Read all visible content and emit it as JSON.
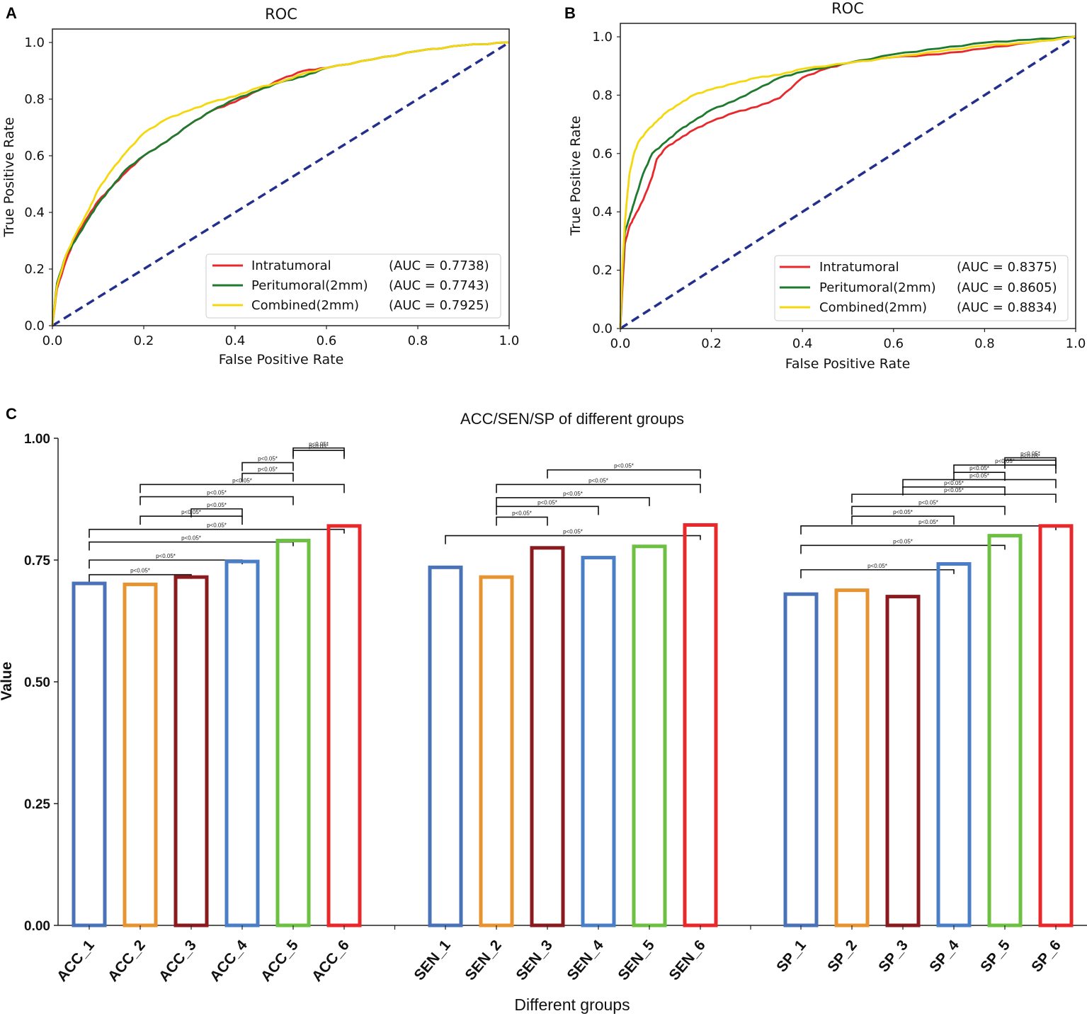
{
  "panels": {
    "a": "A",
    "b": "B",
    "c": "C"
  },
  "chart_data": [
    {
      "id": "A",
      "type": "line",
      "title": "ROC",
      "xlabel": "False Positive Rate",
      "ylabel": "True Positive Rate",
      "xlim": [
        0,
        1
      ],
      "ylim": [
        0,
        1
      ],
      "xticks": [
        "0.0",
        "0.2",
        "0.4",
        "0.6",
        "0.8",
        "1.0"
      ],
      "yticks": [
        "0.0",
        "0.2",
        "0.4",
        "0.6",
        "0.8",
        "1.0"
      ],
      "legend_position": "bottom-right",
      "series": [
        {
          "name": "Intratumoral",
          "auc": "(AUC = 0.7738)",
          "color": "#e8282b",
          "x": [
            0,
            0.01,
            0.03,
            0.05,
            0.08,
            0.1,
            0.13,
            0.16,
            0.2,
            0.25,
            0.3,
            0.35,
            0.4,
            0.45,
            0.5,
            0.55,
            0.6,
            0.7,
            0.8,
            0.9,
            1.0
          ],
          "y": [
            0,
            0.13,
            0.23,
            0.31,
            0.39,
            0.44,
            0.49,
            0.54,
            0.6,
            0.65,
            0.71,
            0.76,
            0.79,
            0.83,
            0.87,
            0.9,
            0.91,
            0.94,
            0.97,
            0.99,
            1.0
          ]
        },
        {
          "name": "Peritumoral(2mm)",
          "auc": "(AUC = 0.7743)",
          "color": "#1d7a2e",
          "x": [
            0,
            0.01,
            0.03,
            0.05,
            0.08,
            0.1,
            0.13,
            0.16,
            0.2,
            0.25,
            0.3,
            0.35,
            0.4,
            0.45,
            0.5,
            0.55,
            0.6,
            0.7,
            0.8,
            0.9,
            1.0
          ],
          "y": [
            0,
            0.15,
            0.25,
            0.3,
            0.38,
            0.43,
            0.49,
            0.55,
            0.6,
            0.65,
            0.71,
            0.76,
            0.8,
            0.83,
            0.86,
            0.88,
            0.91,
            0.94,
            0.97,
            0.99,
            1.0
          ]
        },
        {
          "name": "Combined(2mm)",
          "auc": "(AUC = 0.7925)",
          "color": "#f5d80c",
          "x": [
            0,
            0.01,
            0.03,
            0.05,
            0.08,
            0.1,
            0.13,
            0.16,
            0.2,
            0.25,
            0.3,
            0.35,
            0.4,
            0.45,
            0.5,
            0.55,
            0.6,
            0.7,
            0.8,
            0.9,
            1.0
          ],
          "y": [
            0,
            0.14,
            0.25,
            0.32,
            0.41,
            0.48,
            0.55,
            0.61,
            0.68,
            0.73,
            0.76,
            0.79,
            0.81,
            0.84,
            0.86,
            0.89,
            0.91,
            0.94,
            0.97,
            0.99,
            1.0
          ]
        }
      ],
      "diagonal_color": "#232f8c"
    },
    {
      "id": "B",
      "type": "line",
      "title": "ROC",
      "xlabel": "False Positive Rate",
      "ylabel": "True Positive Rate",
      "xlim": [
        0,
        1
      ],
      "ylim": [
        0,
        1
      ],
      "xticks": [
        "0.0",
        "0.2",
        "0.4",
        "0.6",
        "0.8",
        "1.0"
      ],
      "yticks": [
        "0.0",
        "0.2",
        "0.4",
        "0.6",
        "0.8",
        "1.0"
      ],
      "legend_position": "bottom-right",
      "series": [
        {
          "name": "Intratumoral",
          "auc": "(AUC = 0.8375)",
          "color": "#e8282b",
          "x": [
            0,
            0.005,
            0.01,
            0.02,
            0.03,
            0.05,
            0.07,
            0.08,
            0.1,
            0.13,
            0.16,
            0.2,
            0.25,
            0.3,
            0.35,
            0.4,
            0.45,
            0.5,
            0.6,
            0.7,
            0.8,
            0.9,
            1.0
          ],
          "y": [
            0,
            0.15,
            0.29,
            0.35,
            0.38,
            0.44,
            0.52,
            0.58,
            0.62,
            0.65,
            0.68,
            0.71,
            0.74,
            0.76,
            0.79,
            0.86,
            0.89,
            0.91,
            0.93,
            0.94,
            0.96,
            0.98,
            1.0
          ]
        },
        {
          "name": "Peritumoral(2mm)",
          "auc": "(AUC = 0.8605)",
          "color": "#1d7a2e",
          "x": [
            0,
            0.005,
            0.01,
            0.02,
            0.03,
            0.05,
            0.07,
            0.1,
            0.13,
            0.16,
            0.2,
            0.25,
            0.3,
            0.35,
            0.4,
            0.5,
            0.6,
            0.7,
            0.8,
            0.9,
            1.0
          ],
          "y": [
            0,
            0.2,
            0.33,
            0.38,
            0.43,
            0.53,
            0.6,
            0.64,
            0.68,
            0.71,
            0.75,
            0.78,
            0.82,
            0.86,
            0.88,
            0.91,
            0.94,
            0.96,
            0.98,
            0.99,
            1.0
          ]
        },
        {
          "name": "Combined(2mm)",
          "auc": "(AUC = 0.8834)",
          "color": "#f5d80c",
          "x": [
            0,
            0.005,
            0.01,
            0.015,
            0.02,
            0.03,
            0.04,
            0.06,
            0.08,
            0.1,
            0.13,
            0.16,
            0.2,
            0.25,
            0.3,
            0.35,
            0.4,
            0.5,
            0.6,
            0.7,
            0.8,
            0.9,
            1.0
          ],
          "y": [
            0,
            0.22,
            0.36,
            0.45,
            0.53,
            0.6,
            0.64,
            0.68,
            0.71,
            0.74,
            0.77,
            0.8,
            0.82,
            0.84,
            0.86,
            0.87,
            0.89,
            0.91,
            0.93,
            0.95,
            0.97,
            0.98,
            1.0
          ]
        }
      ],
      "diagonal_color": "#232f8c"
    },
    {
      "id": "C",
      "type": "bar",
      "title": "ACC/SEN/SP of different groups",
      "xlabel": "Different groups",
      "ylabel": "Value",
      "ylim": [
        0,
        1
      ],
      "yticks": [
        "0.00",
        "0.25",
        "0.50",
        "0.75",
        "1.00"
      ],
      "groups": [
        {
          "categories": [
            "ACC_1",
            "ACC_2",
            "ACC_3",
            "ACC_4",
            "ACC_5",
            "ACC_6"
          ],
          "values": [
            0.702,
            0.7,
            0.715,
            0.747,
            0.79,
            0.82
          ]
        },
        {
          "categories": [
            "SEN_1",
            "SEN_2",
            "SEN_3",
            "SEN_4",
            "SEN_5",
            "SEN_6"
          ],
          "values": [
            0.735,
            0.715,
            0.775,
            0.755,
            0.778,
            0.822
          ]
        },
        {
          "categories": [
            "SP_1",
            "SP_2",
            "SP_3",
            "SP_4",
            "SP_5",
            "SP_6"
          ],
          "values": [
            0.68,
            0.688,
            0.675,
            0.742,
            0.8,
            0.82
          ]
        }
      ],
      "bar_colors": [
        "#4a72b8",
        "#e69330",
        "#8b1a1f",
        "#4a7fc8",
        "#6cc142",
        "#e8282b"
      ],
      "significance_label": "p<0.05*",
      "significance": [
        [
          [
            0,
            2,
            0.72
          ],
          [
            0,
            3,
            0.75
          ],
          [
            0,
            4,
            0.787
          ],
          [
            0,
            5,
            0.813
          ],
          [
            1,
            3,
            0.84
          ],
          [
            2,
            3,
            0.855
          ],
          [
            1,
            4,
            0.88
          ],
          [
            1,
            5,
            0.905
          ],
          [
            3,
            4,
            0.928
          ],
          [
            3,
            4,
            0.95
          ],
          [
            4,
            5,
            0.975
          ],
          [
            4,
            5,
            0.98
          ]
        ],
        [
          [
            0,
            5,
            0.8
          ],
          [
            1,
            2,
            0.838
          ],
          [
            1,
            3,
            0.86
          ],
          [
            1,
            4,
            0.878
          ],
          [
            1,
            5,
            0.905
          ],
          [
            2,
            5,
            0.935
          ]
        ],
        [
          [
            0,
            3,
            0.73
          ],
          [
            0,
            4,
            0.78
          ],
          [
            0,
            5,
            0.82
          ],
          [
            1,
            3,
            0.84
          ],
          [
            1,
            4,
            0.86
          ],
          [
            1,
            5,
            0.885
          ],
          [
            2,
            4,
            0.9
          ],
          [
            2,
            5,
            0.915
          ],
          [
            3,
            4,
            0.93
          ],
          [
            3,
            5,
            0.945
          ],
          [
            4,
            5,
            0.955
          ],
          [
            4,
            5,
            0.96
          ]
        ]
      ]
    }
  ]
}
